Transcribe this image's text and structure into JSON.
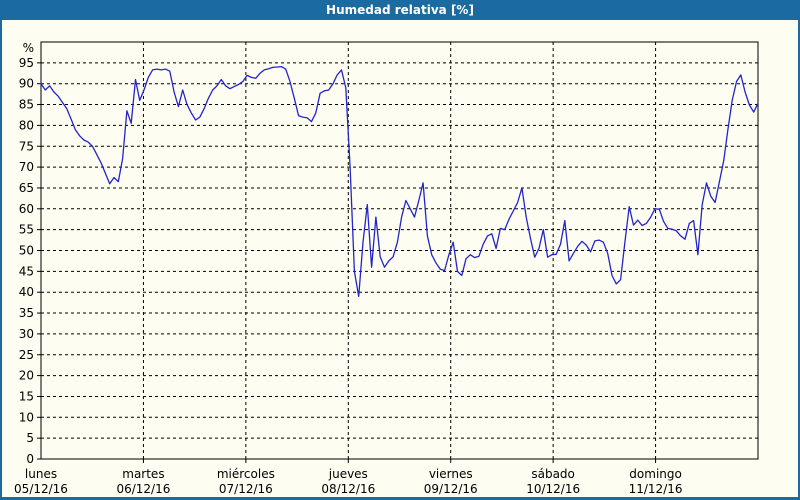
{
  "window": {
    "title": "Humedad relativa [%]"
  },
  "colors": {
    "titlebar_bg": "#1c6ba0",
    "frame_bg": "#1c6ba0",
    "window_bg": "#fdfdf2",
    "plot_bg": "#fdfdf2",
    "grid": "#000000",
    "axis": "#000000",
    "line": "#2424cb",
    "title_text": "#ffffff"
  },
  "chart_data": {
    "type": "line",
    "title": "Humedad relativa [%]",
    "y_unit": "%",
    "ylim": [
      0,
      100
    ],
    "y_ticks": [
      0,
      5,
      10,
      15,
      20,
      25,
      30,
      35,
      40,
      45,
      50,
      55,
      60,
      65,
      70,
      75,
      80,
      85,
      90,
      95
    ],
    "grid": "dashed",
    "legend": "none",
    "points_per_day": 24,
    "series_name": "Humedad relativa",
    "days": [
      {
        "weekday": "lunes",
        "date": "05/12/16",
        "values": [
          90,
          88.5,
          89.5,
          88,
          87,
          85.5,
          84,
          81.5,
          79,
          77.5,
          76.5,
          76,
          75,
          73,
          71,
          68.5,
          66,
          67.5,
          66.5,
          72,
          83.5,
          80.5,
          91,
          86
        ]
      },
      {
        "weekday": "martes",
        "date": "06/12/16",
        "values": [
          88.5,
          91.5,
          93.3,
          93.5,
          93.3,
          93.5,
          93,
          88,
          84.5,
          88.5,
          85,
          83,
          81.3,
          82,
          84,
          86.5,
          88.5,
          89.5,
          91,
          89.5,
          88.8,
          89.3,
          89.8,
          90.5
        ]
      },
      {
        "weekday": "miércoles",
        "date": "07/12/16",
        "values": [
          92,
          91.5,
          91.3,
          92.5,
          93.3,
          93.6,
          93.9,
          94,
          94.1,
          93.5,
          90.5,
          86.5,
          82.3,
          82,
          81.8,
          80.9,
          83,
          87.7,
          88.3,
          88.5,
          90,
          92.1,
          93.3,
          89
        ]
      },
      {
        "weekday": "jueves",
        "date": "08/12/16",
        "values": [
          70,
          45,
          39,
          52,
          61,
          46,
          58,
          48.5,
          46,
          47.5,
          48.5,
          52,
          58,
          62,
          60,
          58,
          62,
          66.2,
          53.5,
          49,
          47,
          45.5,
          45.2,
          49
        ]
      },
      {
        "weekday": "viernes",
        "date": "09/12/16",
        "values": [
          52,
          45,
          44,
          48,
          49,
          48.3,
          48.6,
          51.5,
          53.5,
          54,
          50.5,
          55.3,
          55,
          57.5,
          59.5,
          61.5,
          65,
          58,
          53,
          48.4,
          50.5,
          55,
          48.4,
          49
        ]
      },
      {
        "weekday": "sábado",
        "date": "10/12/16",
        "values": [
          49.1,
          51.5,
          57.2,
          47.5,
          49.3,
          51,
          52.2,
          51.3,
          49.7,
          52.3,
          52.5,
          52,
          49.3,
          44,
          42,
          43,
          52,
          60.5,
          56.1,
          57.3,
          56,
          56.5,
          58,
          60
        ]
      },
      {
        "weekday": "domingo",
        "date": "11/12/16",
        "values": [
          59.9,
          57,
          55.3,
          55.1,
          54.7,
          53.5,
          52.7,
          56.5,
          57.2,
          49,
          61,
          66.2,
          63,
          61.5,
          66.5,
          71.5,
          79,
          86,
          90.5,
          92.1,
          88,
          84.9,
          83.2,
          85.3
        ]
      }
    ]
  }
}
